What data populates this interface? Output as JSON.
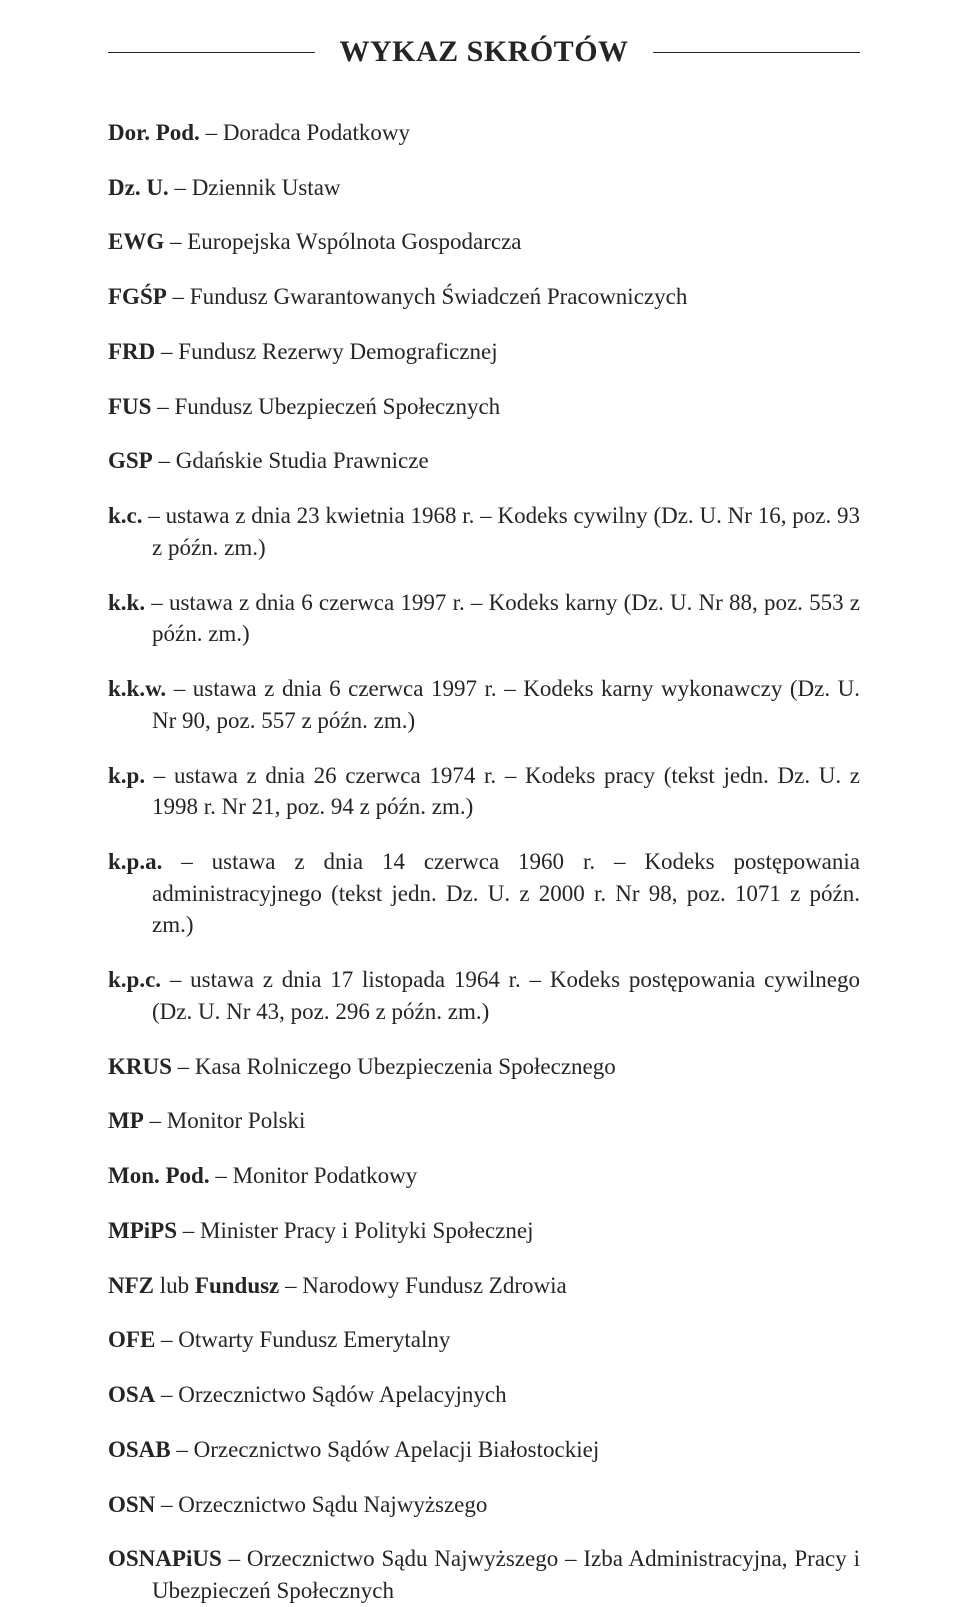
{
  "title": "WYKAZ SKRÓTÓW",
  "font": {
    "title_size_pt": 22,
    "body_size_pt": 17,
    "family": "Georgia, Times New Roman, serif"
  },
  "colors": {
    "text": "#252525",
    "background": "#ffffff",
    "rule": "#252525"
  },
  "entries": [
    {
      "abbr": "Dor. Pod.",
      "def": " – Doradca Podatkowy"
    },
    {
      "abbr": "Dz. U.",
      "def": " – Dziennik Ustaw"
    },
    {
      "abbr": "EWG",
      "def": " – Europejska Wspólnota Gospodarcza"
    },
    {
      "abbr": "FGŚP",
      "def": " – Fundusz Gwarantowanych Świadczeń Pracowniczych"
    },
    {
      "abbr": "FRD",
      "def": " – Fundusz Rezerwy Demograficznej"
    },
    {
      "abbr": "FUS",
      "def": " – Fundusz Ubezpieczeń Społecznych"
    },
    {
      "abbr": "GSP",
      "def": " – Gdańskie Studia Prawnicze"
    },
    {
      "abbr": "k.c.",
      "def": " – ustawa z dnia 23 kwietnia 1968 r. – Kodeks cywilny (Dz. U. Nr 16, poz. 93 z późn. zm.)"
    },
    {
      "abbr": "k.k.",
      "def": " – ustawa z dnia 6 czerwca 1997 r. – Kodeks karny (Dz. U. Nr 88, poz. 553 z późn. zm.)"
    },
    {
      "abbr": "k.k.w.",
      "def": " – ustawa z dnia 6 czerwca 1997 r. – Kodeks karny wykonawczy (Dz. U. Nr 90, poz. 557 z późn. zm.)"
    },
    {
      "abbr": "k.p.",
      "def": " – ustawa z dnia 26 czerwca 1974 r. – Kodeks pracy (tekst jedn. Dz. U. z 1998 r. Nr 21, poz. 94 z późn. zm.)"
    },
    {
      "abbr": "k.p.a.",
      "def": " – ustawa z dnia 14 czerwca 1960 r. – Kodeks postępowania administracyjnego (tekst jedn. Dz. U. z 2000 r. Nr 98, poz. 1071 z późn. zm.)"
    },
    {
      "abbr": "k.p.c.",
      "def": " – ustawa z dnia 17 listopada 1964 r. – Kodeks postępowania cywilnego (Dz. U. Nr 43, poz. 296 z późn. zm.)"
    },
    {
      "abbr": "KRUS",
      "def": " – Kasa Rolniczego Ubezpieczenia Społecznego"
    },
    {
      "abbr": "MP",
      "def": " – Monitor Polski"
    },
    {
      "abbr": "Mon. Pod.",
      "def": " – Monitor Podatkowy"
    },
    {
      "abbr": "MPiPS",
      "def": " – Minister Pracy i Polityki Społecznej"
    },
    {
      "abbr": "NFZ",
      "def": " lub ",
      "abbr2": "Fundusz",
      "def2": " – Narodowy Fundusz Zdrowia"
    },
    {
      "abbr": "OFE",
      "def": " – Otwarty Fundusz Emerytalny"
    },
    {
      "abbr": "OSA",
      "def": " – Orzecznictwo Sądów Apelacyjnych"
    },
    {
      "abbr": "OSAB",
      "def": " – Orzecznictwo Sądów Apelacji Białostockiej"
    },
    {
      "abbr": "OSN",
      "def": " – Orzecznictwo Sądu Najwyższego"
    },
    {
      "abbr": "OSNAPiUS",
      "def": " – Orzecznictwo Sądu Najwyższego – Izba Administracyjna, Pracy i Ubezpieczeń Społecznych"
    }
  ]
}
